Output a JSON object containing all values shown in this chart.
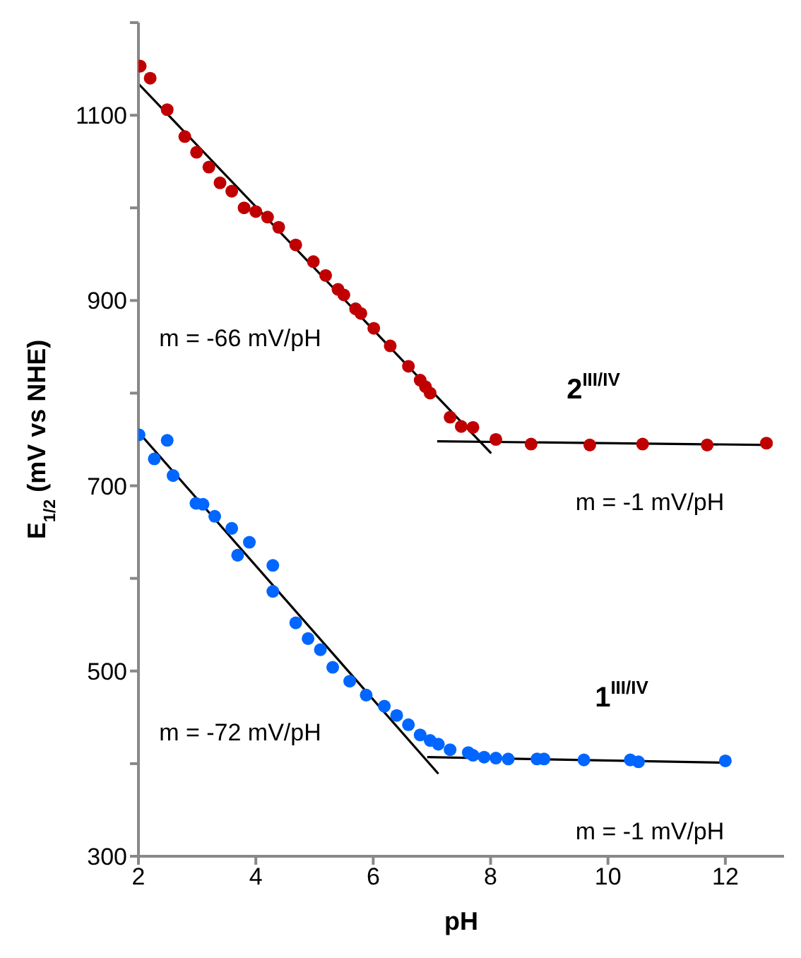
{
  "chart_data": {
    "type": "scatter",
    "xlabel": "pH",
    "ylabel": "E$_{1/2}$ (mV vs NHE)",
    "xlim": [
      2,
      13
    ],
    "xticks": [
      2,
      4,
      6,
      8,
      10,
      12
    ],
    "ylim": [
      300,
      1200
    ],
    "yticks": [
      300,
      {
        "value": 400,
        "label": null
      },
      500,
      {
        "value": 600,
        "label": null
      },
      700,
      {
        "value": 800,
        "label": null
      },
      900,
      {
        "value": 1000,
        "label": null
      },
      1100,
      {
        "value": 1200,
        "label": null
      }
    ],
    "grid": false,
    "series": [
      {
        "color": "#c00000",
        "marker": "circle",
        "x": [
          2.03,
          2.2,
          2.49,
          2.79,
          2.99,
          3.2,
          3.39,
          3.59,
          3.8,
          4.0,
          4.2,
          4.39,
          4.68,
          4.98,
          5.19,
          5.4,
          5.5,
          5.7,
          5.79,
          6.01,
          6.29,
          6.6,
          6.8,
          6.89,
          6.97,
          7.31,
          7.5,
          7.7,
          8.09,
          8.69,
          9.69,
          10.59,
          11.69,
          12.7
        ],
        "values": [
          1153,
          1140,
          1106,
          1077,
          1060,
          1044,
          1027,
          1018,
          1000,
          996,
          990,
          979,
          960,
          942,
          927,
          912,
          906,
          891,
          886,
          870,
          851,
          829,
          814,
          807,
          800,
          774,
          764,
          763,
          750,
          745,
          744,
          745,
          744,
          746
        ]
      },
      {
        "color": "#0066ff",
        "marker": "circle",
        "x": [
          2.01,
          2.27,
          2.49,
          2.59,
          2.98,
          3.1,
          3.3,
          3.59,
          3.69,
          3.89,
          4.29,
          4.29,
          4.68,
          4.89,
          5.1,
          5.31,
          5.6,
          5.88,
          6.19,
          6.4,
          6.6,
          6.8,
          6.97,
          7.11,
          7.31,
          7.62,
          7.7,
          7.89,
          8.09,
          8.3,
          8.79,
          8.91,
          9.59,
          10.38,
          10.52,
          12.0
        ],
        "values": [
          755,
          729,
          749,
          711,
          681,
          680,
          667,
          654,
          625,
          639,
          614,
          586,
          552,
          535,
          523,
          504,
          489,
          474,
          462,
          452,
          442,
          431,
          425,
          421,
          415,
          412,
          409,
          407,
          406,
          405,
          405,
          405,
          404,
          404,
          402,
          403
        ]
      },
      {
        "type": "line",
        "color": "#000000",
        "x": [
          2.0,
          8.01
        ],
        "values": [
          1134,
          735
        ]
      },
      {
        "type": "line",
        "color": "#000000",
        "x": [
          7.09,
          12.8
        ],
        "values": [
          748,
          744
        ]
      },
      {
        "type": "line",
        "color": "#000000",
        "x": [
          2.0,
          7.11
        ],
        "values": [
          758,
          389
        ]
      },
      {
        "type": "line",
        "color": "#000000",
        "x": [
          6.92,
          12.0
        ],
        "values": [
          407,
          401
        ]
      }
    ],
    "annotations": [
      "m = -66 mV/pH",
      "2$^{III/IV}$",
      "m = -1 mV/pH",
      "m = -72 mV/pH",
      "1$^{III/IV}$",
      "m = -1 mV/pH"
    ]
  }
}
